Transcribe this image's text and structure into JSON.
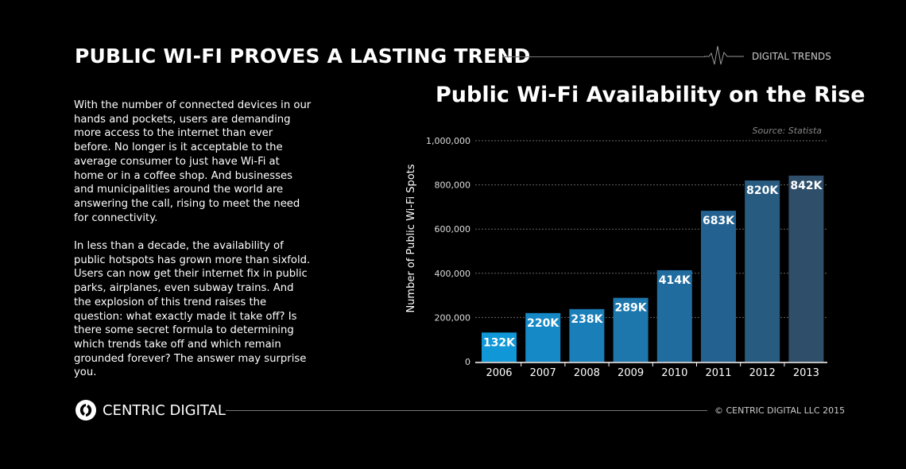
{
  "header": {
    "title": "PUBLIC WI-FI PROVES A LASTING TREND",
    "brand": "DIGITAL TRENDS"
  },
  "body": {
    "paragraphs": [
      "With the number of connected devices in our hands and pockets, users are demanding more access to the internet than ever before. No longer is it acceptable to the average consumer to just have Wi-Fi at home or in a coffee shop. And businesses and municipalities around the world are answering the call, rising to meet the need for connectivity.",
      "In less than a decade, the availability of public hotspots has grown more than sixfold. Users can now get their internet fix in public parks, airplanes, even subway trains. And the explosion of this trend raises the question: what exactly made it take off? Is there some secret formula to determining which trends take off and which remain grounded forever? The answer may surprise you."
    ]
  },
  "chart_data": {
    "type": "bar",
    "title": "Public Wi-Fi Availability on the Rise",
    "source": "Source: Statista",
    "ylabel": "Number of Public Wi-Fi Spots",
    "xlabel": "",
    "categories": [
      "2006",
      "2007",
      "2008",
      "2009",
      "2010",
      "2011",
      "2012",
      "2013"
    ],
    "values": [
      132000,
      220000,
      238000,
      289000,
      414000,
      683000,
      820000,
      842000
    ],
    "data_labels": [
      "132K",
      "220K",
      "238K",
      "289K",
      "414K",
      "683K",
      "820K",
      "842K"
    ],
    "ylim": [
      0,
      1000000
    ],
    "yticks": [
      0,
      200000,
      400000,
      600000,
      800000,
      1000000
    ],
    "ytick_labels": [
      "0",
      "200,000",
      "400,000",
      "600,000",
      "800,000",
      "1,000,000"
    ],
    "grid": true,
    "colors": [
      "#1097d8",
      "#1589c6",
      "#1a7eb8",
      "#1d77ad",
      "#206c9f",
      "#236290",
      "#285b80",
      "#2e4e6a"
    ]
  },
  "footer": {
    "company": "CENTRIC DIGITAL",
    "copyright": "© CENTRIC DIGITAL LLC 2015"
  }
}
